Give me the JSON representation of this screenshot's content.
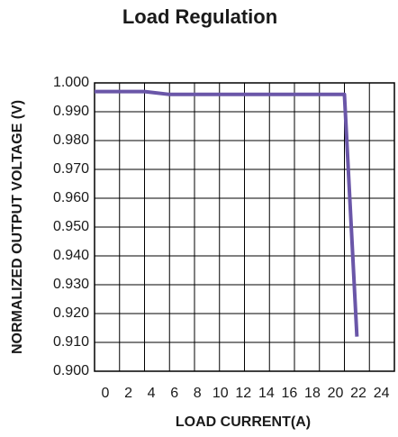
{
  "chart_data": {
    "type": "line",
    "title": "Load Regulation",
    "x_label": "LOAD CURRENT(A)",
    "y_label": "NORMALIZED OUTPUT VOLTAGE (V)",
    "x": [
      0,
      4,
      6,
      20,
      21
    ],
    "series": [
      {
        "name": "Load Regulation",
        "color": "#6a56a8",
        "values": [
          0.997,
          0.997,
          0.996,
          0.996,
          0.912
        ]
      }
    ],
    "xlim": [
      0,
      24
    ],
    "xticks": [
      0,
      2,
      4,
      6,
      8,
      10,
      12,
      14,
      16,
      18,
      20,
      22,
      24
    ],
    "ylim": [
      0.9,
      1.0
    ],
    "yticks": [
      {
        "value": 0.9,
        "label": "0.900"
      },
      {
        "value": 0.91,
        "label": "0.910"
      },
      {
        "value": 0.92,
        "label": "0.920"
      },
      {
        "value": 0.93,
        "label": "0.930"
      },
      {
        "value": 0.94,
        "label": "0.940"
      },
      {
        "value": 0.95,
        "label": "0.950"
      },
      {
        "value": 0.96,
        "label": "0.960"
      },
      {
        "value": 0.97,
        "label": "0.970"
      },
      {
        "value": 0.98,
        "label": "0.980"
      },
      {
        "value": 0.99,
        "label": "0.990"
      },
      {
        "value": 1.0,
        "label": "1.000"
      }
    ],
    "grid": true
  }
}
